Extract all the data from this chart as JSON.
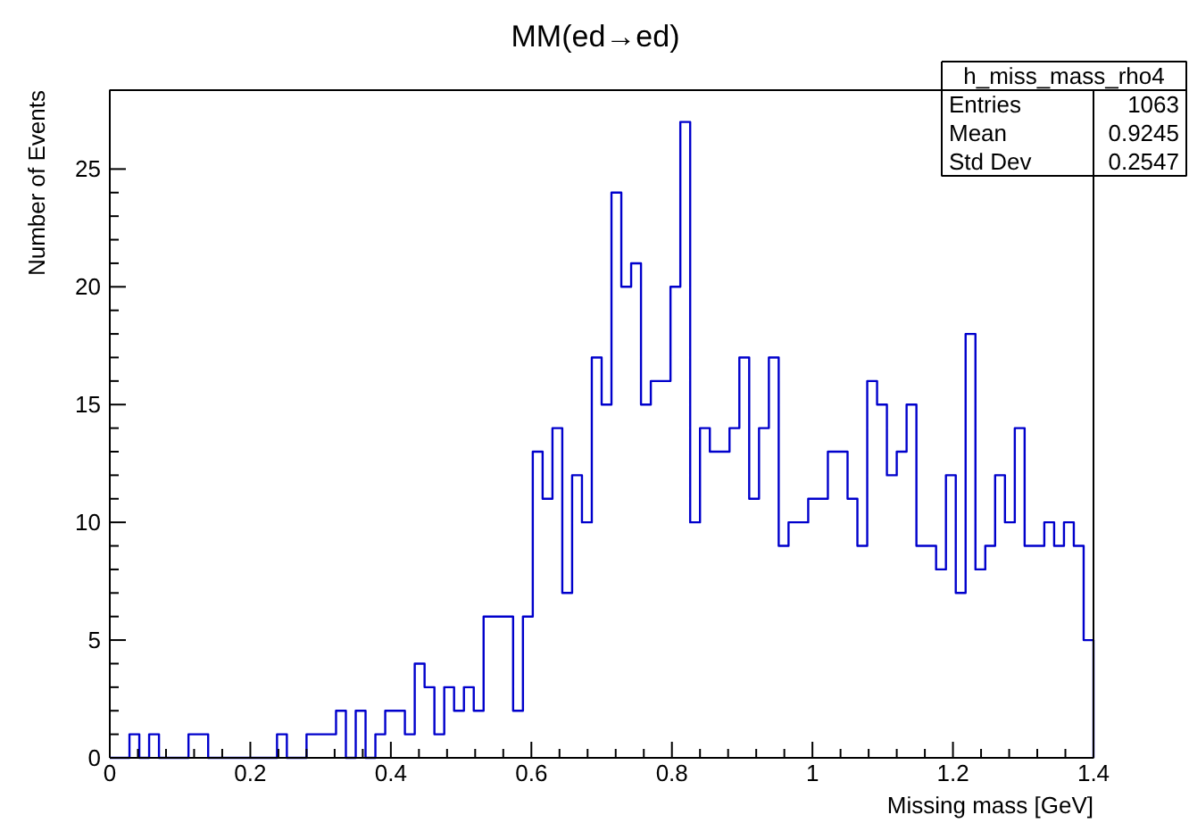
{
  "chart_data": {
    "type": "histogram",
    "title": "MM(ed→ed)",
    "xlabel": "Missing mass [GeV]",
    "ylabel": "Number of Events",
    "bins": [
      0,
      0.014,
      0.028,
      0.042,
      0.056,
      0.07,
      0.084,
      0.098,
      0.112,
      0.126,
      0.14,
      0.154,
      0.168,
      0.182,
      0.196,
      0.21,
      0.224,
      0.238,
      0.252,
      0.266,
      0.28,
      0.294,
      0.308,
      0.322,
      0.336,
      0.35,
      0.364,
      0.378,
      0.392,
      0.406,
      0.42,
      0.434,
      0.448,
      0.462,
      0.476,
      0.49,
      0.504,
      0.518,
      0.532,
      0.546,
      0.56,
      0.574,
      0.588,
      0.602,
      0.616,
      0.63,
      0.644,
      0.658,
      0.672,
      0.686,
      0.7,
      0.714,
      0.728,
      0.742,
      0.756,
      0.77,
      0.784,
      0.798,
      0.812,
      0.826,
      0.84,
      0.854,
      0.868,
      0.882,
      0.896,
      0.91,
      0.924,
      0.938,
      0.952,
      0.966,
      0.98,
      0.994,
      1.008,
      1.022,
      1.036,
      1.05,
      1.064,
      1.078,
      1.092,
      1.106,
      1.12,
      1.134,
      1.148,
      1.162,
      1.176,
      1.19,
      1.204,
      1.218,
      1.232,
      1.246,
      1.26,
      1.274,
      1.288,
      1.302,
      1.316,
      1.33,
      1.344,
      1.358,
      1.372,
      1.386,
      1.4
    ],
    "values": [
      0,
      0,
      1,
      0,
      1,
      0,
      0,
      0,
      1,
      1,
      0,
      0,
      0,
      0,
      0,
      0,
      0,
      1,
      0,
      0,
      1,
      1,
      1,
      2,
      0,
      2,
      0,
      1,
      2,
      2,
      1,
      4,
      3,
      1,
      3,
      2,
      3,
      2,
      6,
      6,
      6,
      2,
      6,
      13,
      11,
      14,
      7,
      12,
      10,
      17,
      15,
      24,
      20,
      21,
      15,
      16,
      16,
      20,
      27,
      10,
      14,
      13,
      13,
      14,
      17,
      11,
      14,
      17,
      9,
      10,
      10,
      11,
      11,
      13,
      13,
      11,
      9,
      16,
      15,
      12,
      13,
      15,
      9,
      9,
      8,
      12,
      7,
      18,
      8,
      9,
      12,
      10,
      14,
      9,
      9,
      10,
      9,
      10,
      9,
      5
    ],
    "color": "#0000cc",
    "xlim": [
      0,
      1.4
    ],
    "ylim": [
      0,
      28.35
    ],
    "xticks": [
      0,
      0.2,
      0.4,
      0.6,
      0.8,
      1,
      1.2,
      1.4
    ],
    "yticks": [
      0,
      5,
      10,
      15,
      20,
      25
    ],
    "grid": false,
    "annotations": [
      "h_miss_mass_rho4",
      "Entries",
      "1063",
      "Mean",
      "0.9245",
      "Std Dev",
      "0.2547"
    ]
  }
}
